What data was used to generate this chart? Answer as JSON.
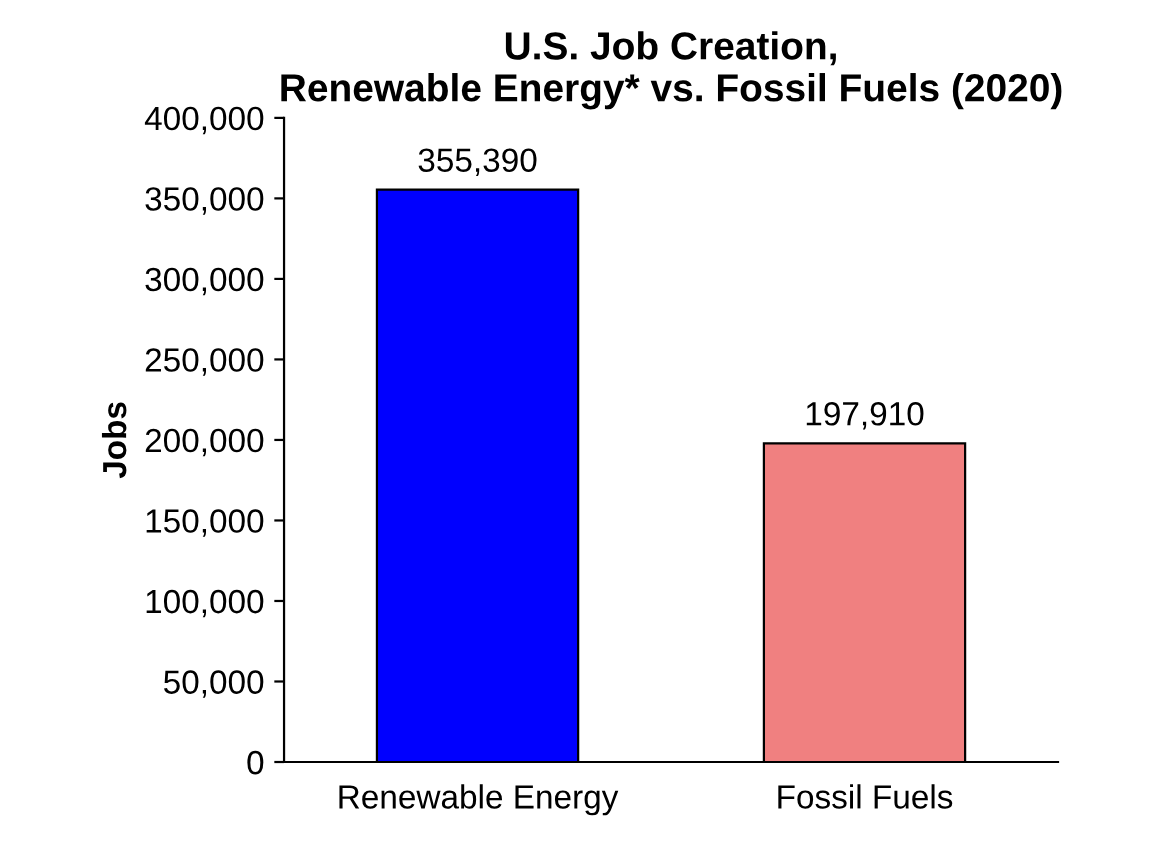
{
  "chart_data": {
    "type": "bar",
    "title": "U.S. Job Creation,\nRenewable Energy* vs. Fossil Fuels (2020)",
    "ylabel": "Jobs",
    "categories": [
      "Renewable Energy",
      "Fossil Fuels"
    ],
    "values": [
      355390,
      197910
    ],
    "colors": [
      "#0000ff",
      "#f08080"
    ],
    "value_labels": [
      "355,390",
      "197,910"
    ],
    "ylim": [
      0,
      400000
    ],
    "yticks": [
      {
        "value": 0,
        "label": "0"
      },
      {
        "value": 50000,
        "label": "50,000"
      },
      {
        "value": 100000,
        "label": "100,000"
      },
      {
        "value": 150000,
        "label": "150,000"
      },
      {
        "value": 200000,
        "label": "200,000"
      },
      {
        "value": 250000,
        "label": "250,000"
      },
      {
        "value": 300000,
        "label": "300,000"
      },
      {
        "value": 350000,
        "label": "350,000"
      },
      {
        "value": 400000,
        "label": "400,000"
      }
    ],
    "grid": false,
    "legend": false
  }
}
